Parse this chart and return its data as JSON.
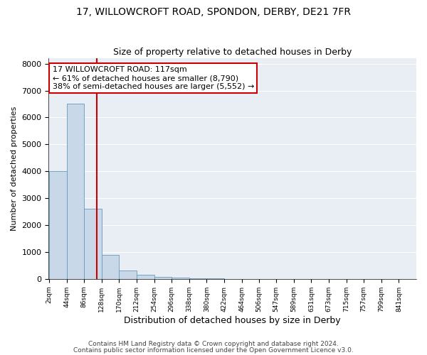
{
  "title1": "17, WILLOWCROFT ROAD, SPONDON, DERBY, DE21 7FR",
  "title2": "Size of property relative to detached houses in Derby",
  "xlabel": "Distribution of detached houses by size in Derby",
  "ylabel": "Number of detached properties",
  "footnote1": "Contains HM Land Registry data © Crown copyright and database right 2024.",
  "footnote2": "Contains public sector information licensed under the Open Government Licence v3.0.",
  "bin_edges": [
    2,
    44,
    86,
    128,
    170,
    212,
    254,
    296,
    338,
    380,
    422,
    464,
    506,
    547,
    589,
    631,
    673,
    715,
    757,
    799,
    841
  ],
  "bar_heights": [
    4000,
    6500,
    2600,
    900,
    300,
    150,
    80,
    50,
    20,
    10,
    5,
    3,
    2,
    1,
    1,
    0,
    0,
    0,
    0,
    0
  ],
  "bar_color": "#c8d8e8",
  "bar_edge_color": "#6699bb",
  "property_size": 117,
  "annotation_line_color": "#cc0000",
  "annotation_box_text": "17 WILLOWCROFT ROAD: 117sqm\n← 61% of detached houses are smaller (8,790)\n38% of semi-detached houses are larger (5,552) →",
  "annotation_box_color": "#cc0000",
  "ylim": [
    0,
    8200
  ],
  "bg_color": "#e8eef4",
  "grid_color": "#ffffff",
  "title1_fontsize": 10,
  "title2_fontsize": 9,
  "xlabel_fontsize": 9,
  "ylabel_fontsize": 8,
  "footnote_fontsize": 6.5,
  "annotation_fontsize": 8
}
